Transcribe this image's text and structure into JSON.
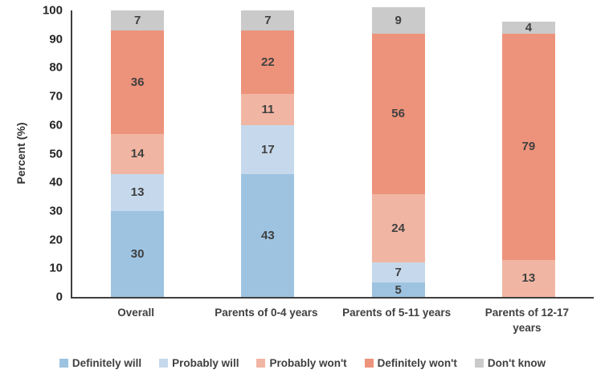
{
  "chart_data": {
    "type": "bar",
    "stacked": true,
    "title": "",
    "xlabel": "",
    "ylabel": "Percent (%)",
    "ylim": [
      0,
      100
    ],
    "yticks": [
      0,
      10,
      20,
      30,
      40,
      50,
      60,
      70,
      80,
      90,
      100
    ],
    "grid": false,
    "legend_position": "bottom",
    "categories": [
      "Overall",
      "Parents of 0-4 years",
      "Parents of 5-11 years",
      "Parents of 12-17 years"
    ],
    "series": [
      {
        "name": "Definitely will",
        "color": "#9dc3e1",
        "values": [
          30,
          43,
          5,
          0
        ]
      },
      {
        "name": "Probably will",
        "color": "#c6d9ec",
        "values": [
          13,
          17,
          7,
          0
        ]
      },
      {
        "name": "Probably won't",
        "color": "#f1b6a3",
        "values": [
          14,
          11,
          24,
          13
        ]
      },
      {
        "name": "Definitely won't",
        "color": "#ed937b",
        "values": [
          36,
          22,
          56,
          79
        ]
      },
      {
        "name": "Don't know",
        "color": "#cacaca",
        "values": [
          7,
          7,
          9,
          4
        ]
      }
    ]
  }
}
